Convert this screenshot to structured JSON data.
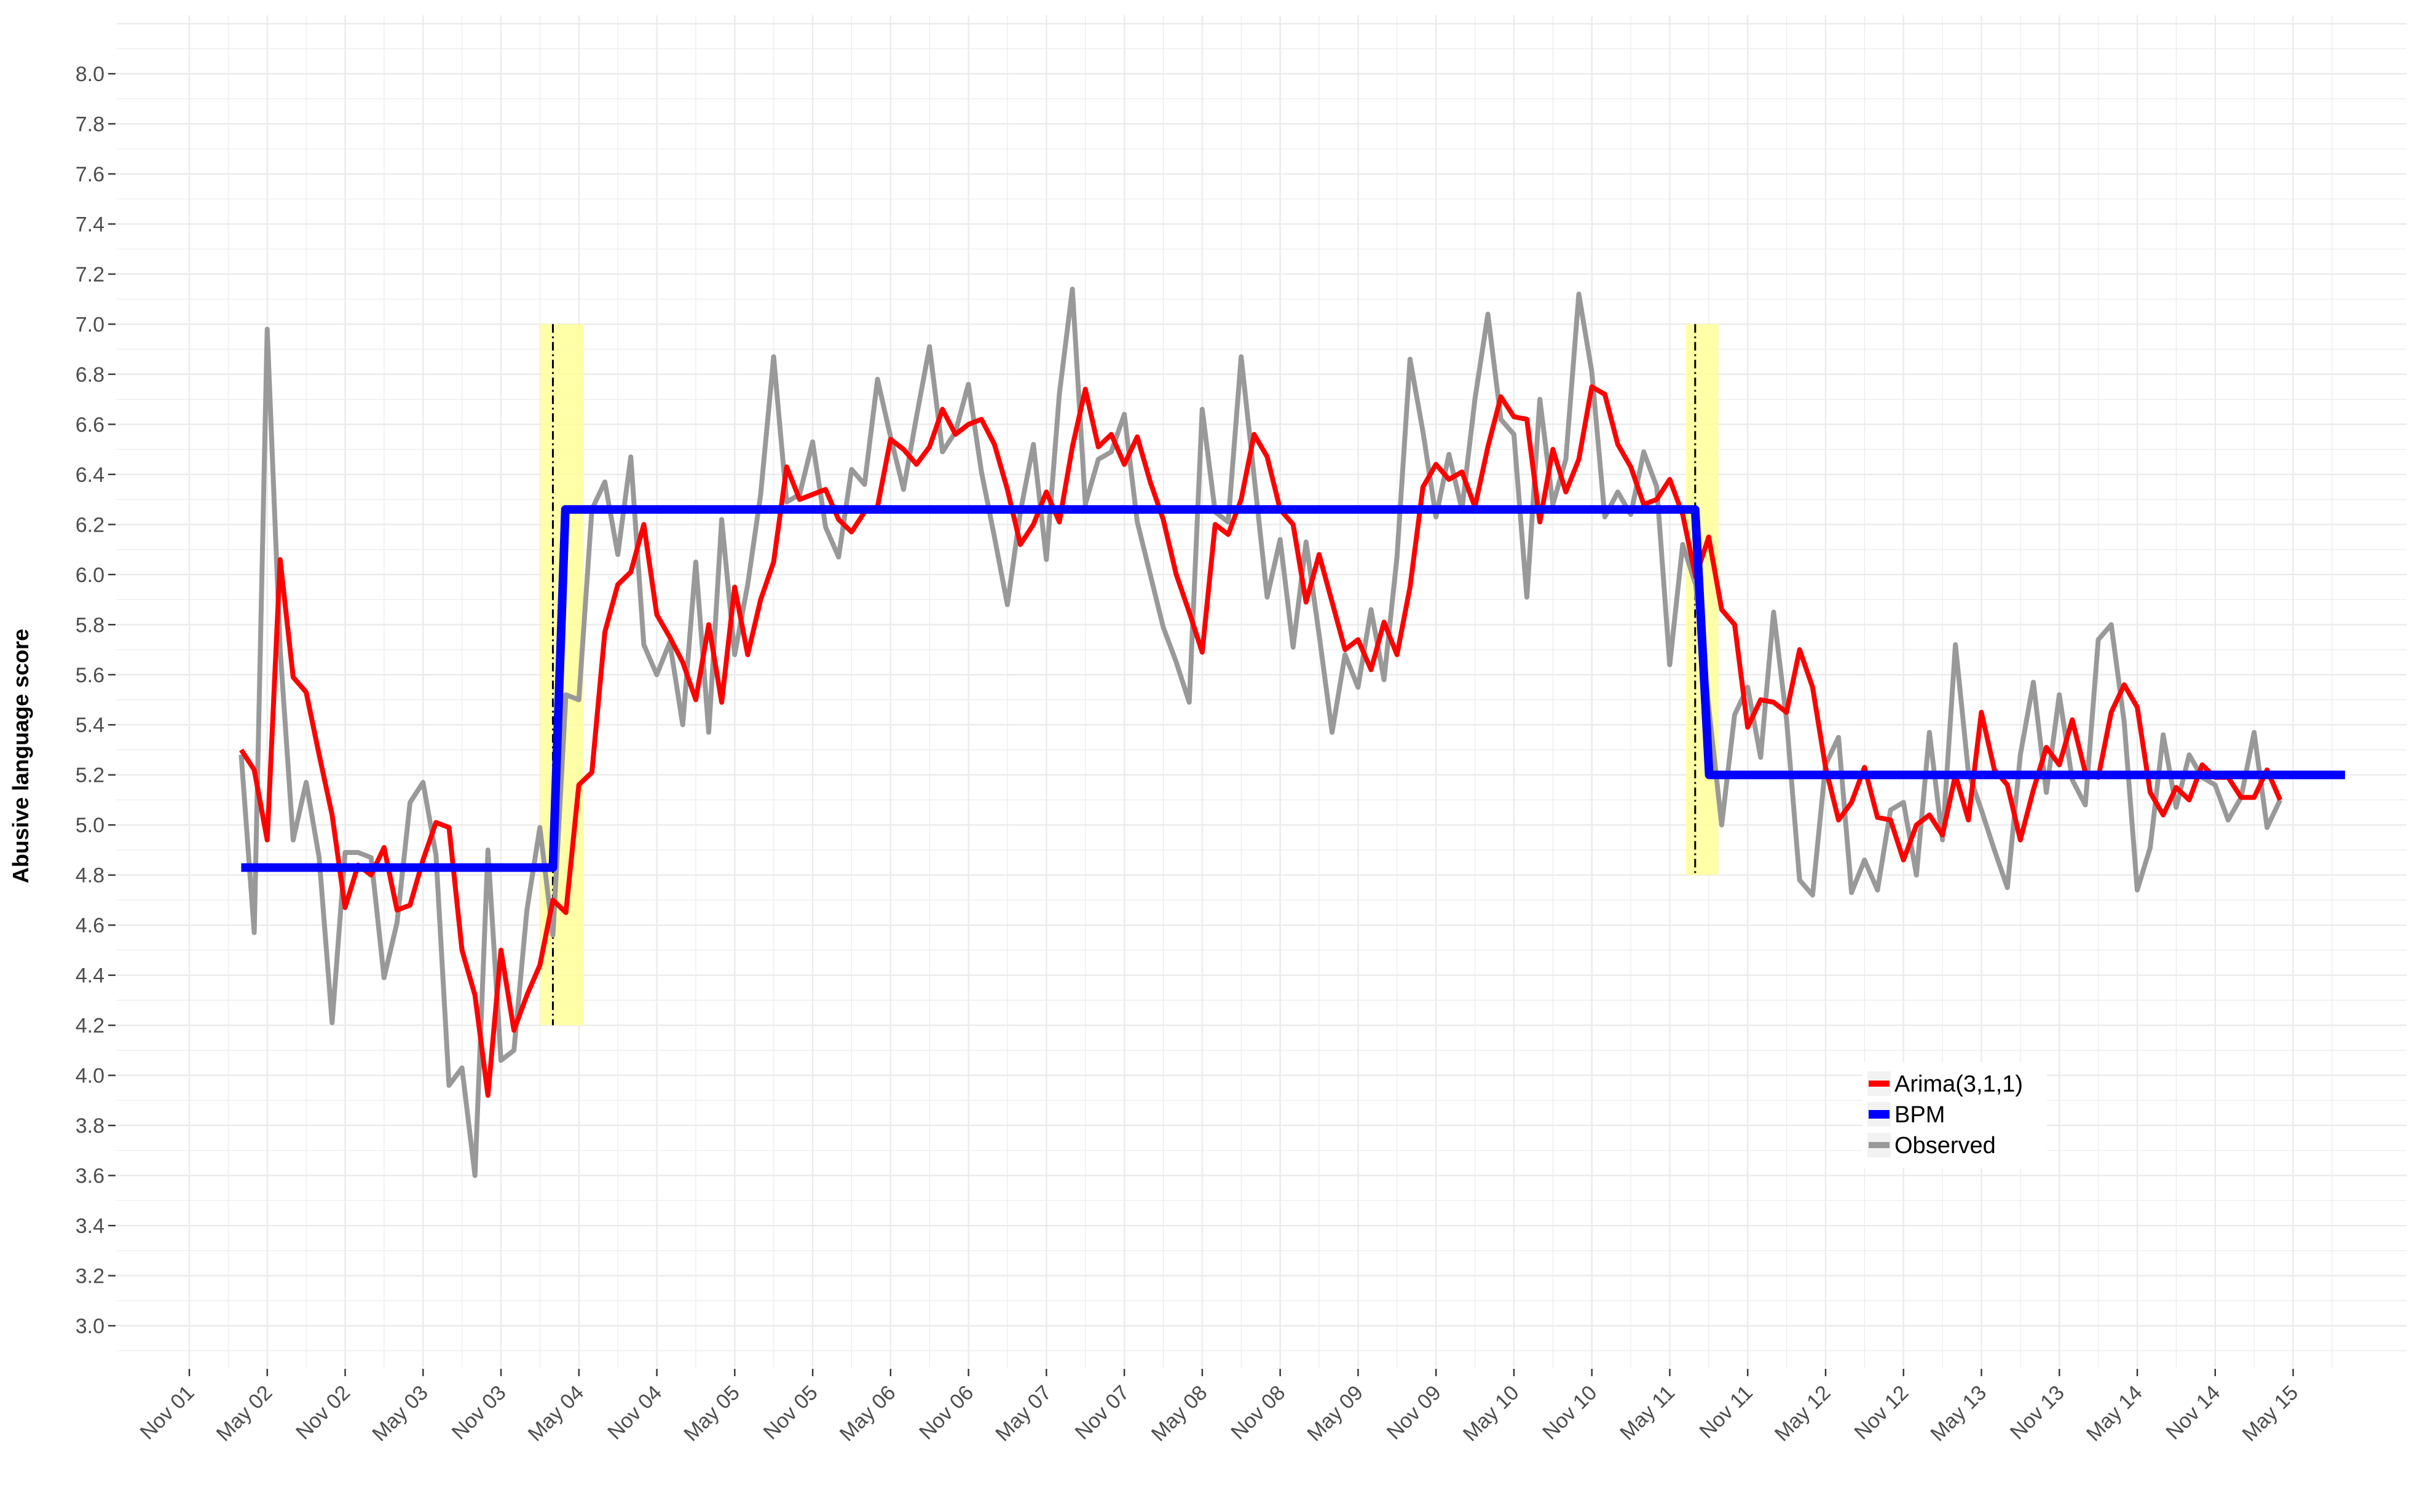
{
  "chart_data": {
    "type": "line",
    "ylabel": "Abusive language score",
    "xlabel": "",
    "title": "",
    "ylim": [
      2.9,
      8.25
    ],
    "y_ticks": [
      "3.0",
      "3.2",
      "3.4",
      "3.6",
      "3.8",
      "4.0",
      "4.2",
      "4.4",
      "4.6",
      "4.8",
      "5.0",
      "5.2",
      "5.4",
      "5.6",
      "5.8",
      "6.0",
      "6.2",
      "6.4",
      "6.6",
      "6.8",
      "7.0",
      "7.2",
      "7.4",
      "7.6",
      "7.8",
      "8.0"
    ],
    "x_ticks": [
      "Nov 01",
      "May 02",
      "Nov 02",
      "May 03",
      "Nov 03",
      "May 04",
      "Nov 04",
      "May 05",
      "Nov 05",
      "May 06",
      "Nov 06",
      "May 07",
      "Nov 07",
      "May 08",
      "Nov 08",
      "May 09",
      "Nov 09",
      "May 10",
      "Nov 10",
      "May 11",
      "Nov 11",
      "May 12",
      "Nov 12",
      "May 13",
      "Nov 13",
      "May 14",
      "Nov 14",
      "May 15"
    ],
    "xlim": [
      2001.667,
      2015.5
    ],
    "grid": true,
    "legend_position": "lower-right",
    "change_points": [
      {
        "x": 2004.0,
        "band": [
          2003.92,
          2004.2
        ],
        "y_range": [
          4.2,
          7.0
        ]
      },
      {
        "x": 2011.33,
        "band": [
          2011.27,
          2011.48
        ],
        "y_range": [
          4.8,
          7.0
        ]
      }
    ],
    "series": [
      {
        "name": "Observed",
        "color": "#999999",
        "x_start": 2002.0,
        "x_step": 0.0833333,
        "values": [
          5.28,
          4.57,
          6.98,
          5.7,
          4.94,
          5.17,
          4.87,
          4.21,
          4.89,
          4.89,
          4.87,
          4.39,
          4.61,
          5.09,
          5.17,
          4.88,
          3.96,
          4.03,
          3.6,
          4.9,
          4.06,
          4.1,
          4.66,
          4.99,
          4.56,
          5.52,
          5.5,
          6.26,
          6.37,
          6.08,
          6.47,
          5.72,
          5.6,
          5.73,
          5.4,
          6.05,
          5.37,
          6.22,
          5.68,
          5.96,
          6.32,
          6.87,
          6.29,
          6.32,
          6.53,
          6.19,
          6.07,
          6.42,
          6.36,
          6.78,
          6.55,
          6.34,
          6.63,
          6.91,
          6.49,
          6.57,
          6.76,
          6.41,
          6.15,
          5.88,
          6.25,
          6.52,
          6.06,
          6.72,
          7.14,
          6.28,
          6.46,
          6.49,
          6.64,
          6.21,
          6.0,
          5.79,
          5.65,
          5.49,
          6.66,
          6.25,
          6.21,
          6.87,
          6.39,
          5.91,
          6.14,
          5.71,
          6.13,
          5.76,
          5.37,
          5.68,
          5.55,
          5.86,
          5.58,
          6.07,
          6.86,
          6.57,
          6.23,
          6.48,
          6.26,
          6.7,
          7.04,
          6.62,
          6.56,
          5.91,
          6.7,
          6.28,
          6.46,
          7.12,
          6.81,
          6.23,
          6.33,
          6.24,
          6.49,
          6.35,
          5.64,
          6.12,
          5.96,
          5.47,
          5.0,
          5.44,
          5.55,
          5.27,
          5.85,
          5.42,
          4.78,
          4.72,
          5.24,
          5.35,
          4.73,
          4.86,
          4.74,
          5.06,
          5.09,
          4.8,
          5.37,
          4.94,
          5.72,
          5.21,
          5.06,
          4.9,
          4.75,
          5.28,
          5.57,
          5.13,
          5.52,
          5.18,
          5.08,
          5.74,
          5.8,
          5.41,
          4.74,
          4.91,
          5.36,
          5.07,
          5.28,
          5.19,
          5.16,
          5.02,
          5.11,
          5.37,
          4.99,
          5.1
        ]
      },
      {
        "name": "Arima(3,1,1)",
        "color": "#ff0000",
        "x_start": 2002.0,
        "x_step": 0.0833333,
        "values": [
          5.3,
          5.22,
          4.94,
          6.06,
          5.59,
          5.53,
          5.28,
          5.04,
          4.67,
          4.84,
          4.8,
          4.91,
          4.66,
          4.68,
          4.86,
          5.01,
          4.99,
          4.5,
          4.32,
          3.92,
          4.5,
          4.18,
          4.32,
          4.44,
          4.7,
          4.65,
          5.16,
          5.21,
          5.77,
          5.96,
          6.01,
          6.2,
          5.84,
          5.75,
          5.65,
          5.5,
          5.8,
          5.49,
          5.95,
          5.68,
          5.9,
          6.05,
          6.43,
          6.3,
          6.32,
          6.34,
          6.22,
          6.17,
          6.25,
          6.27,
          6.54,
          6.5,
          6.44,
          6.51,
          6.66,
          6.56,
          6.6,
          6.62,
          6.52,
          6.34,
          6.12,
          6.2,
          6.33,
          6.21,
          6.51,
          6.74,
          6.51,
          6.56,
          6.44,
          6.55,
          6.37,
          6.22,
          6.0,
          5.85,
          5.69,
          6.2,
          6.16,
          6.3,
          6.56,
          6.47,
          6.26,
          6.2,
          5.89,
          6.08,
          5.89,
          5.7,
          5.74,
          5.62,
          5.81,
          5.68,
          5.95,
          6.35,
          6.44,
          6.38,
          6.41,
          6.27,
          6.51,
          6.71,
          6.63,
          6.62,
          6.21,
          6.5,
          6.33,
          6.46,
          6.75,
          6.72,
          6.52,
          6.43,
          6.28,
          6.3,
          6.38,
          6.24,
          5.99,
          6.15,
          5.86,
          5.8,
          5.39,
          5.5,
          5.49,
          5.45,
          5.7,
          5.55,
          5.23,
          5.02,
          5.09,
          5.23,
          5.03,
          5.02,
          4.86,
          5.0,
          5.04,
          4.96,
          5.2,
          5.02,
          5.45,
          5.22,
          5.16,
          4.94,
          5.14,
          5.31,
          5.24,
          5.42,
          5.21,
          5.19,
          5.45,
          5.56,
          5.47,
          5.13,
          5.04,
          5.15,
          5.1,
          5.24,
          5.19,
          5.19,
          5.11,
          5.11,
          5.22,
          5.1
        ]
      },
      {
        "name": "BPM",
        "color": "#0000ff",
        "x": [
          2002.0,
          2004.0,
          2004.08,
          2011.33,
          2011.42,
          2015.5
        ],
        "values": [
          4.83,
          4.83,
          6.26,
          6.26,
          5.2,
          5.2
        ]
      }
    ],
    "legend": [
      "Arima(3,1,1)",
      "BPM",
      "Observed"
    ]
  },
  "colors": {
    "panel_grid": "#ebebeb",
    "band": "#ffff99",
    "changepoint_line": "#000000"
  }
}
